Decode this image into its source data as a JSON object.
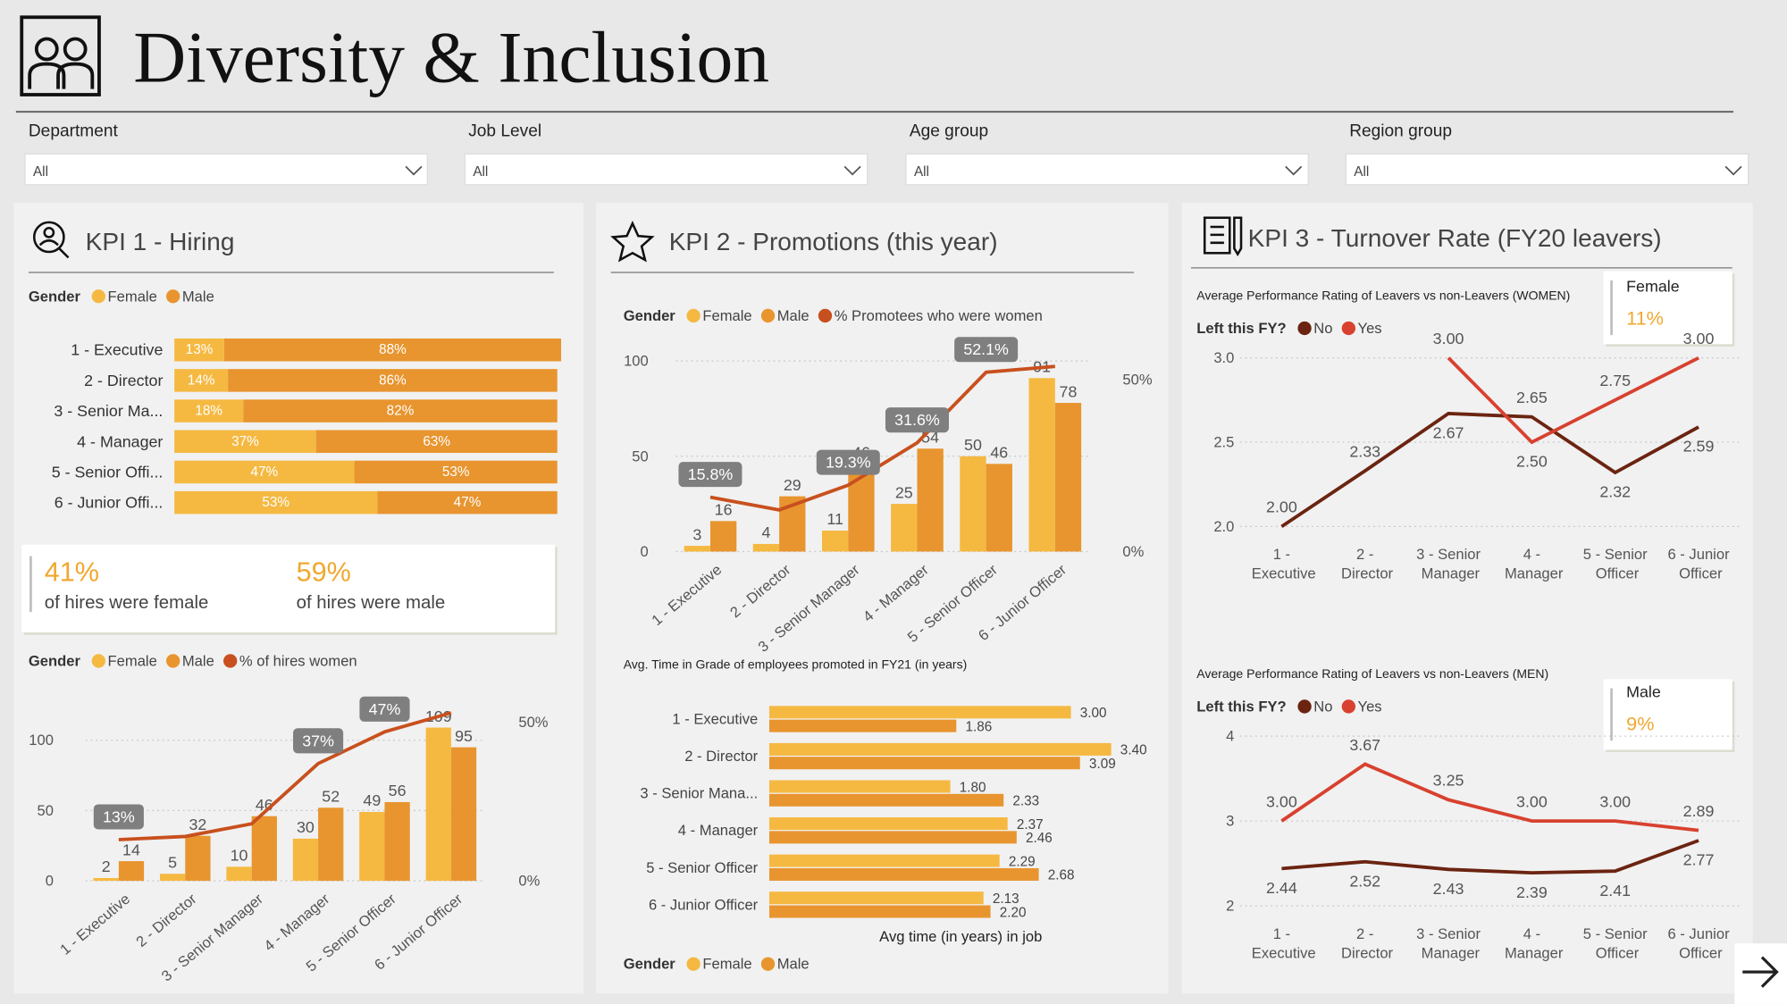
{
  "header": {
    "title": "Diversity & Inclusion"
  },
  "filters": [
    {
      "label": "Department",
      "value": "All"
    },
    {
      "label": "Job Level",
      "value": "All"
    },
    {
      "label": "Age group",
      "value": "All"
    },
    {
      "label": "Region group",
      "value": "All"
    }
  ],
  "panels": [
    {
      "title": "KPI 1 - Hiring"
    },
    {
      "title": "KPI 2 - Promotions (this year)"
    },
    {
      "title": "KPI 3 - Turnover Rate (FY20 leavers)"
    }
  ],
  "kpi_cards": [
    {
      "value": "41%",
      "text": "of hires were female"
    },
    {
      "value": "59%",
      "text": "of hires were male"
    }
  ],
  "turnover_cards": [
    {
      "title": "Female",
      "value": "11%"
    },
    {
      "title": "Male",
      "value": "9%"
    }
  ],
  "chart_data": [
    {
      "type": "hbar100",
      "legend_title": "Gender",
      "categories": [
        "1 - Executive",
        "2 - Director",
        "3 - Senior Ma...",
        "4 - Manager",
        "5 - Senior Offi...",
        "6 - Junior Offi..."
      ],
      "series": [
        {
          "name": "Female",
          "color": "#f5b942",
          "values": [
            13,
            14,
            18,
            37,
            47,
            53
          ],
          "value_labels": [
            "13%",
            "14%",
            "18%",
            "37%",
            "47%",
            "53%"
          ]
        },
        {
          "name": "Male",
          "color": "#e8952f",
          "values": [
            88,
            86,
            82,
            63,
            53,
            47
          ],
          "value_labels": [
            "88%",
            "86%",
            "82%",
            "63%",
            "53%",
            "47%"
          ]
        }
      ],
      "xlim": [
        0,
        100
      ]
    },
    {
      "type": "combo",
      "legend_title": "Gender",
      "categories": [
        "1 - Executive",
        "2 - Director",
        "3 - Senior Manager",
        "4 - Manager",
        "5 - Senior Officer",
        "6 - Junior Officer"
      ],
      "series": [
        {
          "name": "Female",
          "color": "#f5b942",
          "values": [
            2,
            5,
            10,
            30,
            49,
            109
          ]
        },
        {
          "name": "Male",
          "color": "#e8952f",
          "values": [
            14,
            32,
            46,
            52,
            56,
            95
          ]
        },
        {
          "name": "% of hires women",
          "color": "#c8501e",
          "axis": "y2",
          "values": [
            13,
            14,
            18,
            37,
            47,
            53
          ],
          "value_labels": [
            "13%",
            null,
            null,
            "37%",
            "47%",
            null
          ]
        }
      ],
      "ylim": [
        0,
        124
      ],
      "yticks": [
        0,
        50,
        100
      ],
      "y2lim": [
        0,
        55
      ],
      "y2ticks": [
        {
          "value": 0,
          "label": "0%"
        },
        {
          "value": 50,
          "label": "50%"
        }
      ],
      "grid": true
    },
    {
      "type": "combo",
      "legend_title": "Gender",
      "categories": [
        "1 - Executive",
        "2 - Director",
        "3 - Senior Manager",
        "4 - Manager",
        "5 - Senior Officer",
        "6 - Junior Officer"
      ],
      "series": [
        {
          "name": "Female",
          "color": "#f5b942",
          "values": [
            3,
            4,
            11,
            25,
            50,
            91
          ]
        },
        {
          "name": "Male",
          "color": "#e8952f",
          "values": [
            16,
            29,
            46,
            54,
            46,
            78
          ]
        },
        {
          "name": "% Promotees who were women",
          "color": "#c8501e",
          "axis": "y2",
          "values": [
            15.8,
            12.1,
            19.3,
            31.6,
            52.1,
            53.8
          ],
          "value_labels": [
            "15.8%",
            null,
            "19.3%",
            "31.6%",
            "52.1%",
            null
          ]
        }
      ],
      "ylim": [
        0,
        104
      ],
      "yticks": [
        0,
        50,
        100
      ],
      "y2lim": [
        0,
        57.6
      ],
      "y2ticks": [
        {
          "value": 0,
          "label": "0%"
        },
        {
          "value": 50,
          "label": "50%"
        }
      ],
      "grid": true
    },
    {
      "type": "hbar",
      "title": "Avg. Time in Grade of employees promoted in FY21 (in years)",
      "xlabel": "Avg time (in years) in job",
      "legend_title": "Gender",
      "categories": [
        "1 - Executive",
        "2 - Director",
        "3 - Senior Mana...",
        "4 - Manager",
        "5 - Senior Officer",
        "6 - Junior Officer"
      ],
      "series": [
        {
          "name": "Female",
          "color": "#f5b942",
          "values": [
            3.0,
            3.4,
            1.8,
            2.37,
            2.29,
            2.13
          ],
          "value_labels": [
            "3.00",
            "3.40",
            "1.80",
            "2.37",
            "2.29",
            "2.13"
          ]
        },
        {
          "name": "Male",
          "color": "#e8952f",
          "values": [
            1.86,
            3.09,
            2.33,
            2.46,
            2.68,
            2.2
          ],
          "value_labels": [
            "1.86",
            "3.09",
            "2.33",
            "2.46",
            "2.68",
            "2.20"
          ]
        }
      ],
      "xlim": [
        0,
        3.4
      ]
    },
    {
      "type": "line",
      "title": "Average Performance Rating of Leavers vs non-Leavers (WOMEN)",
      "legend_title": "Left this FY?",
      "categories": [
        "1 - Executive",
        "2 - Director",
        "3 - Senior Manager",
        "4 - Manager",
        "5 - Senior Officer",
        "6 - Junior Officer"
      ],
      "series": [
        {
          "name": "No",
          "color": "#6b2411",
          "values": [
            2.0,
            2.33,
            2.67,
            2.65,
            2.32,
            2.59
          ],
          "value_labels": [
            "2.00",
            "2.33",
            "2.67",
            "2.65",
            "2.32",
            "2.59"
          ]
        },
        {
          "name": "Yes",
          "color": "#d8412f",
          "values": [
            null,
            null,
            3.0,
            2.5,
            2.75,
            3.0
          ],
          "value_labels": [
            null,
            null,
            "3.00",
            "2.50",
            "2.75",
            "3.00"
          ]
        }
      ],
      "ylim": [
        2,
        3
      ],
      "yticks": [
        {
          "value": 2,
          "label": "2.0"
        },
        {
          "value": 2.5,
          "label": "2.5"
        },
        {
          "value": 3,
          "label": "3.0"
        }
      ],
      "grid": true
    },
    {
      "type": "line",
      "title": "Average Performance Rating of Leavers vs non-Leavers (MEN)",
      "legend_title": "Left this FY?",
      "categories": [
        "1 - Executive",
        "2 - Director",
        "3 - Senior Manager",
        "4 - Manager",
        "5 - Senior Officer",
        "6 - Junior Officer"
      ],
      "series": [
        {
          "name": "No",
          "color": "#6b2411",
          "values": [
            2.44,
            2.52,
            2.43,
            2.39,
            2.41,
            2.77
          ],
          "value_labels": [
            "2.44",
            "2.52",
            "2.43",
            "2.39",
            "2.41",
            "2.77"
          ]
        },
        {
          "name": "Yes",
          "color": "#d8412f",
          "values": [
            3.0,
            3.67,
            3.25,
            3.0,
            3.0,
            2.89
          ],
          "value_labels": [
            "3.00",
            "3.67",
            "3.25",
            "3.00",
            "3.00",
            "2.89"
          ]
        }
      ],
      "ylim": [
        2,
        4
      ],
      "yticks": [
        2,
        3,
        4
      ],
      "grid": true
    }
  ]
}
